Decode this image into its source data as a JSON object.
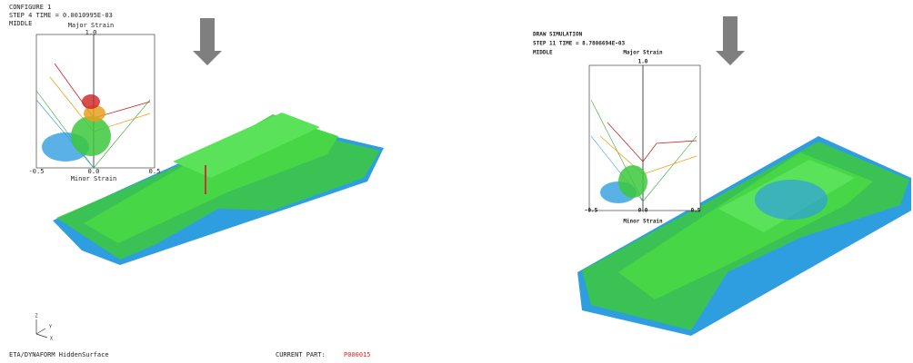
{
  "left_panel": {
    "header": [
      "CONFIGURE 1",
      "STEP 4    TIME = 0.0010995E-03",
      "MIDDLE"
    ],
    "plot": {
      "y_label": "Major Strain",
      "y_top": "1.0",
      "x_ticks": [
        "-0.5",
        "0.0",
        "0.5"
      ],
      "x_label": "Minor Strain"
    },
    "axis_triad": [
      "Z",
      "Y",
      "X"
    ],
    "footer": {
      "app": "ETA/DYNAFORM  HiddenSurface",
      "part_label": "CURRENT PART:",
      "part_value": "P000015"
    }
  },
  "right_panel": {
    "header": [
      "DRAW SIMULATION",
      "STEP 11   TIME = 8.7806694E-03",
      "MIDDLE"
    ],
    "plot": {
      "y_label": "Major Strain",
      "y_top": "1.0",
      "x_ticks": [
        "-0.5",
        "0.0",
        "0.5"
      ],
      "x_label": "Minor Strain"
    }
  }
}
